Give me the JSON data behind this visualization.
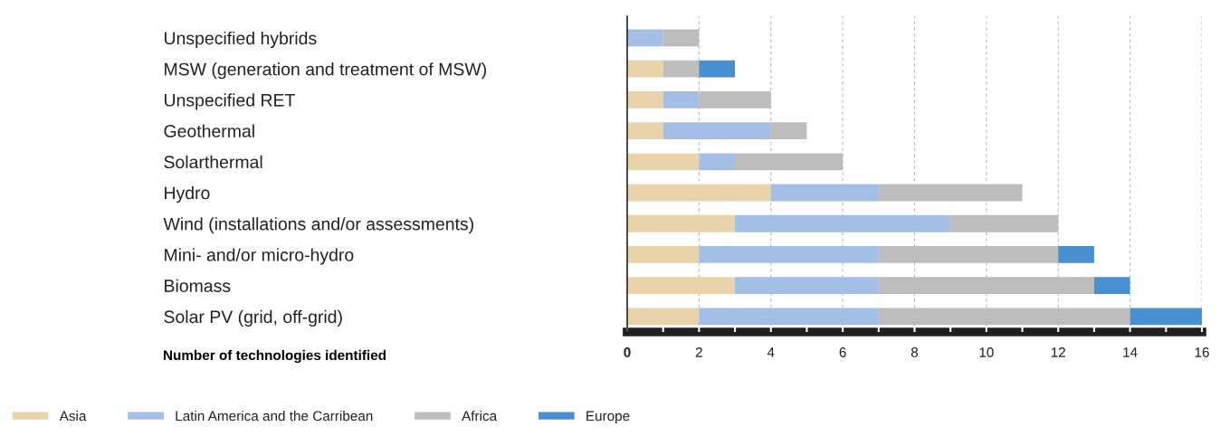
{
  "chart_data": {
    "type": "bar",
    "orientation": "horizontal",
    "stacked": true,
    "xlabel": "Number of technologies identified",
    "categories": [
      "Unspecified hybrids",
      "MSW (generation and treatment of MSW)",
      "Unspecified RET",
      "Geothermal",
      "Solarthermal",
      "Hydro",
      "Wind (installations and/or assessments)",
      "Mini- and/or micro-hydro",
      "Biomass",
      "Solar PV (grid, off-grid)"
    ],
    "series": [
      {
        "name": "Asia",
        "color": "#e8d3ab",
        "values": [
          0,
          1,
          1,
          1,
          2,
          4,
          3,
          2,
          3,
          2
        ]
      },
      {
        "name": "Latin America and the Carribean",
        "color": "#a3bfe6",
        "values": [
          1,
          0,
          1,
          3,
          1,
          3,
          6,
          5,
          4,
          5
        ]
      },
      {
        "name": "Africa",
        "color": "#bdbdbd",
        "values": [
          1,
          1,
          2,
          1,
          3,
          4,
          3,
          5,
          6,
          7
        ]
      },
      {
        "name": "Europe",
        "color": "#4a8fd0",
        "values": [
          0,
          1,
          0,
          0,
          0,
          0,
          0,
          1,
          1,
          2
        ]
      }
    ],
    "xlim": [
      0,
      16
    ],
    "xticks": [
      0,
      {
        "value": 1,
        "label": null
      },
      2,
      {
        "value": 3,
        "label": null
      },
      4,
      {
        "value": 5,
        "label": null
      },
      6,
      {
        "value": 7,
        "label": null
      },
      8,
      {
        "value": 9,
        "label": null
      },
      10,
      {
        "value": 11,
        "label": null
      },
      12,
      {
        "value": 13,
        "label": null
      },
      14,
      {
        "value": 15,
        "label": null
      },
      16
    ],
    "grid": "x",
    "legend": "bottom"
  }
}
